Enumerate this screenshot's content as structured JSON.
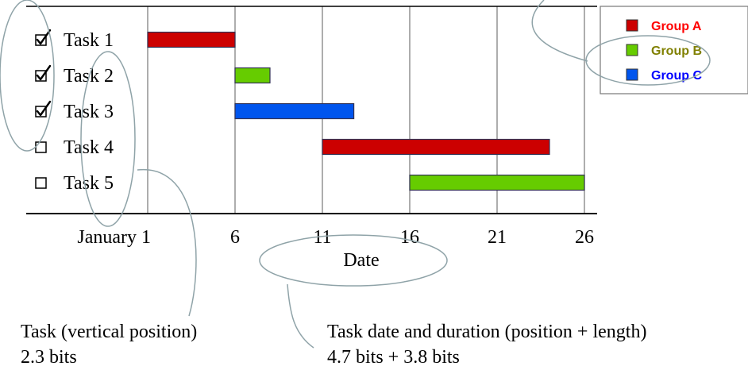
{
  "colors": {
    "group_a": "#cc0000",
    "group_b": "#66cc00",
    "group_c": "#0055ee",
    "group_a_label": "#ff0000",
    "group_b_label": "#808000",
    "group_c_label": "#0000ff",
    "annotation": "#8fa3a8"
  },
  "chart_data": {
    "type": "gantt",
    "xlabel": "Date",
    "ylabel": "",
    "x_ticks": [
      "January 1",
      "6",
      "11",
      "16",
      "21",
      "26"
    ],
    "x_tick_values": [
      1,
      6,
      11,
      16,
      21,
      26
    ],
    "xlim": [
      1,
      26
    ],
    "grid": "vertical",
    "legend_position": "top-right",
    "legend": [
      {
        "name": "Group A",
        "color_key": "group_a",
        "label_color_key": "group_a_label"
      },
      {
        "name": "Group B",
        "color_key": "group_b",
        "label_color_key": "group_b_label"
      },
      {
        "name": "Group C",
        "color_key": "group_c",
        "label_color_key": "group_c_label"
      }
    ],
    "tasks": [
      {
        "name": "Task 1",
        "checked": true,
        "group": "Group A",
        "start": 1,
        "end": 6
      },
      {
        "name": "Task 2",
        "checked": true,
        "group": "Group B",
        "start": 6,
        "end": 8
      },
      {
        "name": "Task 3",
        "checked": true,
        "group": "Group C",
        "start": 6,
        "end": 12.8
      },
      {
        "name": "Task 4",
        "checked": false,
        "group": "Group A",
        "start": 11,
        "end": 24
      },
      {
        "name": "Task 5",
        "checked": false,
        "group": "Group B",
        "start": 16,
        "end": 26
      }
    ]
  },
  "annotations": {
    "task_caption": "Task (vertical position)",
    "task_bits": "2.3 bits",
    "date_caption": "Task date and duration (position + length)",
    "date_bits": "4.7 bits + 3.8 bits"
  }
}
